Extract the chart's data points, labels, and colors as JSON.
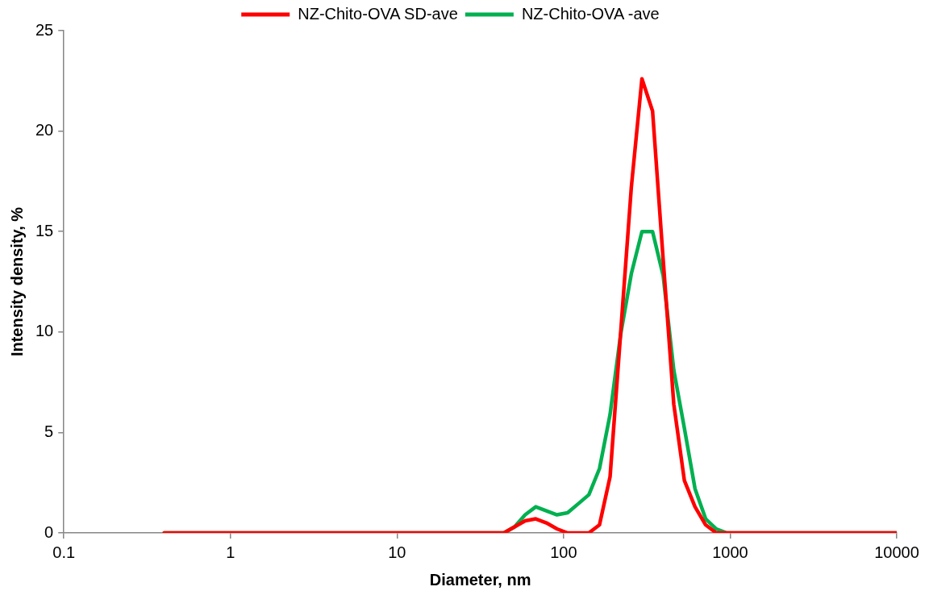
{
  "chart_data": {
    "type": "line",
    "xlabel": "Diameter, nm",
    "ylabel": "Intensity density, %",
    "x": [
      0.4,
      43.82,
      50.75,
      58.77,
      68.06,
      78.82,
      91.28,
      105.7,
      122.4,
      141.8,
      164.2,
      190.1,
      220.2,
      255,
      295.3,
      342,
      396.1,
      458.7,
      531.2,
      615.1,
      712.4,
      825,
      955.4,
      10000
    ],
    "series": [
      {
        "name": "NZ-Chito-OVA SD-ave",
        "color": "#ff0000",
        "values": [
          0,
          0,
          0.3,
          0.6,
          0.7,
          0.5,
          0.2,
          0,
          0,
          0,
          0.4,
          2.8,
          10,
          17.2,
          22.6,
          21,
          13.6,
          6.4,
          2.6,
          1.3,
          0.4,
          0,
          0,
          0
        ]
      },
      {
        "name": "NZ-Chito-OVA -ave",
        "color": "#00b050",
        "values": [
          0,
          0,
          0.3,
          0.9,
          1.3,
          1.1,
          0.9,
          1,
          1.45,
          1.9,
          3.2,
          5.9,
          9.9,
          12.9,
          15,
          15,
          12.8,
          8.1,
          5.2,
          2.2,
          0.7,
          0.2,
          0,
          0
        ]
      }
    ],
    "log": "x",
    "xlim": [
      0.1,
      10000
    ],
    "xticks": [
      0.1,
      1,
      10,
      100,
      1000,
      10000
    ],
    "ylim": [
      0,
      25
    ],
    "yticks": [
      0,
      5,
      10,
      15,
      20,
      25
    ],
    "grid": false,
    "legend": "top",
    "marker": "none",
    "line_style": "solid"
  }
}
